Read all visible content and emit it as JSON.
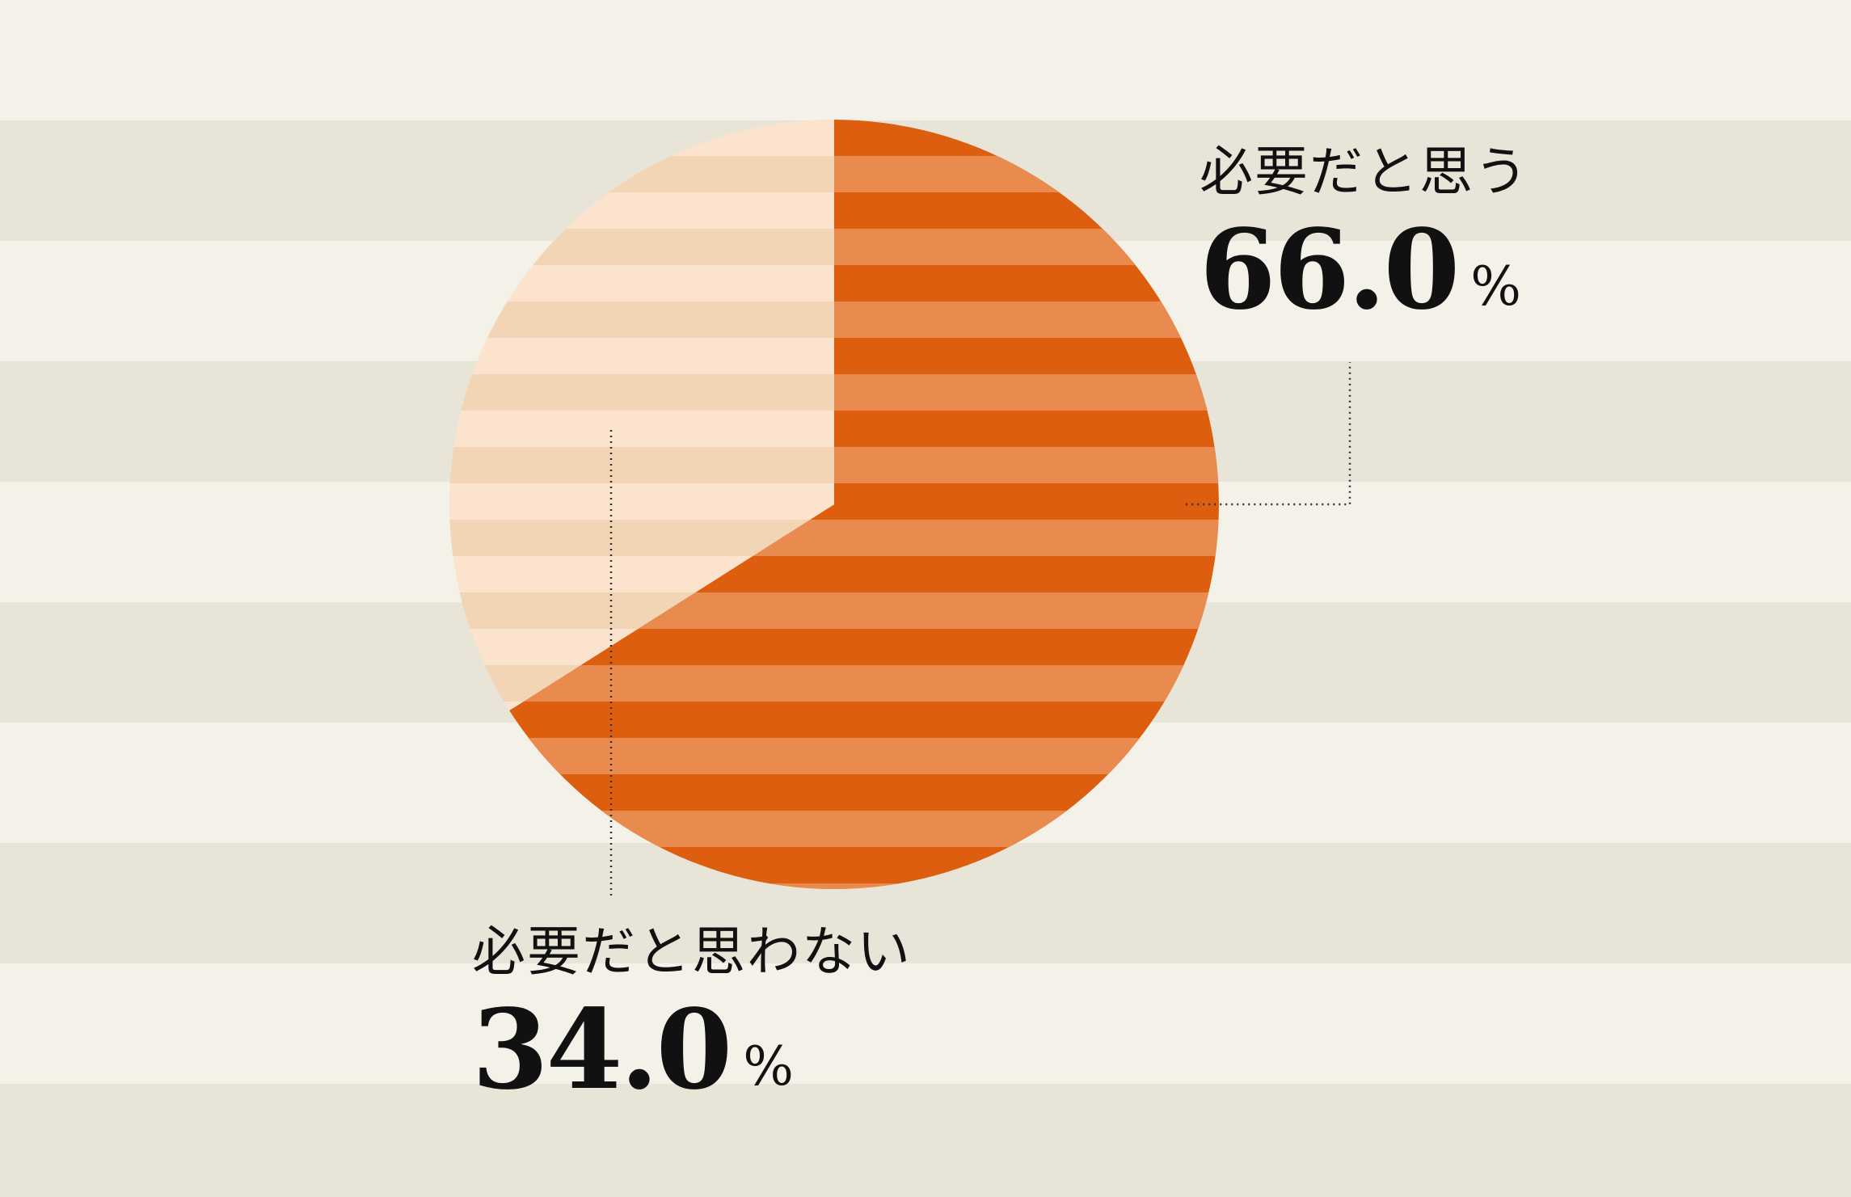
{
  "chart_data": {
    "type": "pie",
    "title": "",
    "start_angle": "12 o'clock",
    "direction": "clockwise",
    "slices": [
      {
        "label": "必要だと思う",
        "value": 66.0,
        "value_text": "66.0",
        "unit": "%",
        "colors": [
          "#DD5E0F",
          "#E98B4F"
        ]
      },
      {
        "label": "必要だと思わない",
        "value": 34.0,
        "value_text": "34.0",
        "unit": "%",
        "colors": [
          "#FBE3CE",
          "#F1D5B4"
        ]
      }
    ]
  },
  "background": {
    "colors": [
      "#F4F1E8",
      "#E8E4D8"
    ]
  },
  "leader_line_color": "#333333"
}
